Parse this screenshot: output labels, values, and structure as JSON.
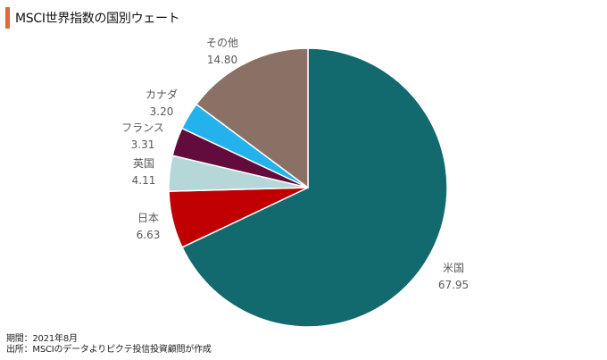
{
  "header": {
    "title": "MSCI世界指数の国別ウェート"
  },
  "footer": {
    "period": "期間：2021年8月",
    "source": "出所：MSCIのデータよりピクテ投信投資顧問が作成"
  },
  "chart_data": {
    "type": "pie",
    "title": "MSCI世界指数の国別ウェート",
    "start": "12 o'clock",
    "direction": "clockwise",
    "slices": [
      {
        "label": "米国",
        "value": 67.95,
        "value_label": "67.95",
        "color": "#12696e"
      },
      {
        "label": "日本",
        "value": 6.63,
        "value_label": "6.63",
        "color": "#c00000"
      },
      {
        "label": "英国",
        "value": 4.11,
        "value_label": "4.11",
        "color": "#b6d7d8"
      },
      {
        "label": "フランス",
        "value": 3.31,
        "value_label": "3.31",
        "color": "#620b3c"
      },
      {
        "label": "カナダ",
        "value": 3.2,
        "value_label": "3.20",
        "color": "#23b2eb"
      },
      {
        "label": "その他",
        "value": 14.8,
        "value_label": "14.80",
        "color": "#8b7165"
      }
    ]
  }
}
